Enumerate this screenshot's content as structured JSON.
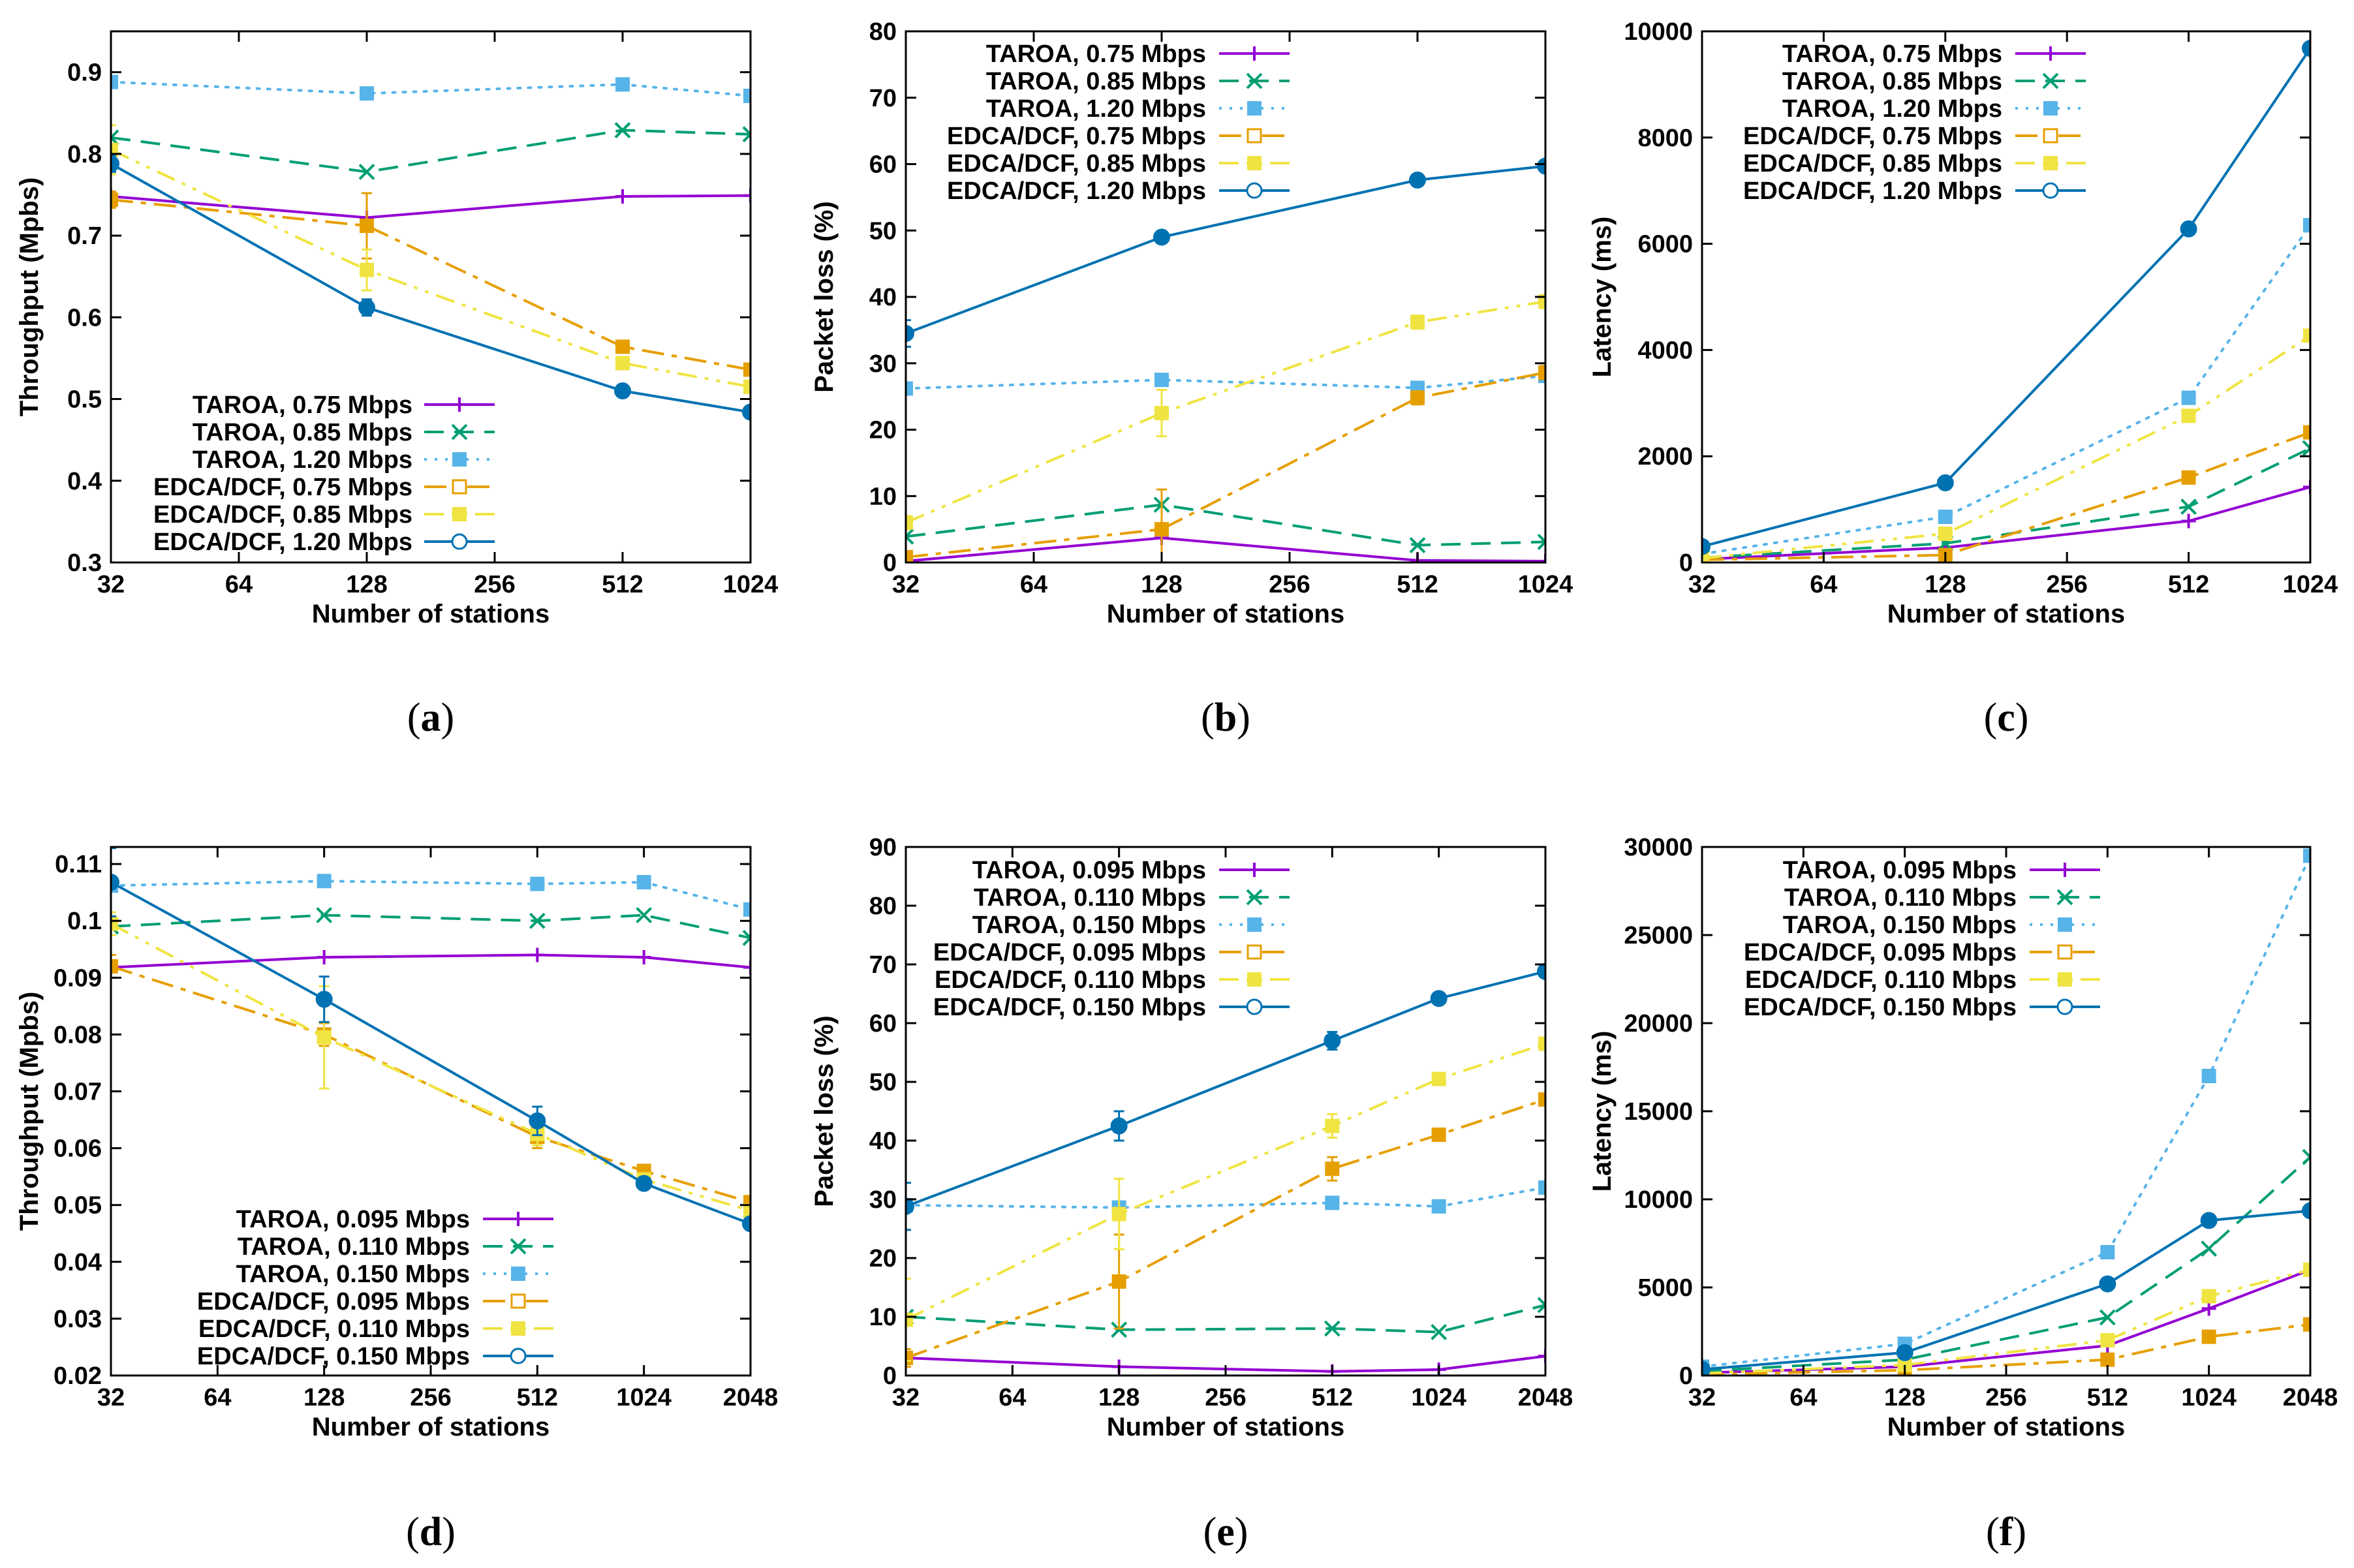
{
  "colors": {
    "purple": "#9400d3",
    "green": "#009e73",
    "skyblue": "#56b4e9",
    "orange": "#e69f00",
    "yellow": "#f0e442",
    "blue": "#0072b2"
  },
  "series_styles": [
    {
      "color": "purple",
      "dash": "",
      "marker": "plus"
    },
    {
      "color": "green",
      "dash": "30,16",
      "marker": "cross"
    },
    {
      "color": "skyblue",
      "dash": "4,12",
      "marker": "square-filled"
    },
    {
      "color": "orange",
      "dash": "34,12,8,12",
      "marker": "square-filled"
    },
    {
      "color": "yellow",
      "dash": "30,12,6,12,6,12",
      "marker": "square-filled"
    },
    {
      "color": "blue",
      "dash": "",
      "marker": "circle-filled"
    }
  ],
  "chart_data": [
    {
      "id": "a",
      "type": "line",
      "caption_letter": "a",
      "xlabel": "Number of stations",
      "ylabel": "Throughput (Mpbs)",
      "xscale": "log2",
      "xticks": [
        32,
        64,
        128,
        256,
        512,
        1024
      ],
      "xlim": [
        32,
        1024
      ],
      "ylim": [
        0.3,
        0.95
      ],
      "yticks": [
        0.3,
        0.4,
        0.5,
        0.6,
        0.7,
        0.8,
        0.9
      ],
      "ytick_labels": [
        "0.3",
        "0.4",
        "0.5",
        "0.6",
        "0.7",
        "0.8",
        "0.9"
      ],
      "legend_position": "bottom-right",
      "x": [
        32,
        128,
        512,
        1024
      ],
      "series": [
        {
          "name": "TAROA, 0.75 Mbps",
          "values": [
            0.748,
            0.722,
            0.748,
            0.749
          ]
        },
        {
          "name": "TAROA, 0.85 Mbps",
          "values": [
            0.82,
            0.778,
            0.829,
            0.824
          ]
        },
        {
          "name": "TAROA, 1.20 Mbps",
          "values": [
            0.888,
            0.874,
            0.885,
            0.871
          ]
        },
        {
          "name": "EDCA/DCF, 0.75 Mbps",
          "values": [
            0.744,
            0.712,
            0.564,
            0.536
          ],
          "errors": [
            0.01,
            0.04,
            0.005,
            0.005
          ]
        },
        {
          "name": "EDCA/DCF, 0.85 Mbps",
          "values": [
            0.805,
            0.658,
            0.544,
            0.515
          ],
          "errors": [
            0.03,
            0.025,
            0.005,
            0.005
          ]
        },
        {
          "name": "EDCA/DCF, 1.20 Mbps",
          "values": [
            0.788,
            0.612,
            0.51,
            0.484
          ],
          "errors": [
            0.01,
            0.01,
            0.003,
            0.003
          ]
        }
      ]
    },
    {
      "id": "b",
      "type": "line",
      "caption_letter": "b",
      "xlabel": "Number of stations",
      "ylabel": "Packet loss (%)",
      "xscale": "log2",
      "xticks": [
        32,
        64,
        128,
        256,
        512,
        1024
      ],
      "xlim": [
        32,
        1024
      ],
      "ylim": [
        0,
        80
      ],
      "yticks": [
        0,
        10,
        20,
        30,
        40,
        50,
        60,
        70,
        80
      ],
      "ytick_labels": [
        "0",
        "10",
        "20",
        "30",
        "40",
        "50",
        "60",
        "70",
        "80"
      ],
      "legend_position": "top-left",
      "x": [
        32,
        128,
        512,
        1024
      ],
      "series": [
        {
          "name": "TAROA, 0.75 Mbps",
          "values": [
            0.2,
            3.7,
            0.3,
            0.2
          ]
        },
        {
          "name": "TAROA, 0.85 Mbps",
          "values": [
            3.9,
            8.7,
            2.6,
            3.1
          ]
        },
        {
          "name": "TAROA, 1.20 Mbps",
          "values": [
            26.2,
            27.5,
            26.3,
            28.1
          ]
        },
        {
          "name": "EDCA/DCF, 0.75 Mbps",
          "values": [
            0.8,
            5.0,
            24.8,
            28.6
          ],
          "errors": [
            0.5,
            6.0,
            1.0,
            1.0
          ]
        },
        {
          "name": "EDCA/DCF, 0.85 Mbps",
          "values": [
            6.0,
            22.5,
            36.2,
            39.3
          ],
          "errors": [
            1.0,
            3.5,
            1.0,
            1.0
          ]
        },
        {
          "name": "EDCA/DCF, 1.20 Mbps",
          "values": [
            34.5,
            49.0,
            57.6,
            59.7
          ],
          "errors": [
            2.0,
            0.5,
            0.5,
            0.5
          ]
        }
      ]
    },
    {
      "id": "c",
      "type": "line",
      "caption_letter": "c",
      "xlabel": "Number of stations",
      "ylabel": "Latency (ms)",
      "xscale": "log2",
      "xticks": [
        32,
        64,
        128,
        256,
        512,
        1024
      ],
      "xlim": [
        32,
        1024
      ],
      "ylim": [
        0,
        10000
      ],
      "yticks": [
        0,
        2000,
        4000,
        6000,
        8000,
        10000
      ],
      "ytick_labels": [
        "0",
        "2000",
        "4000",
        "6000",
        "8000",
        "10000"
      ],
      "legend_position": "top-left",
      "x": [
        32,
        128,
        512,
        1024
      ],
      "series": [
        {
          "name": "TAROA, 0.75 Mbps",
          "values": [
            60,
            280,
            780,
            1420
          ]
        },
        {
          "name": "TAROA, 0.85 Mbps",
          "values": [
            90,
            360,
            1050,
            2150
          ]
        },
        {
          "name": "TAROA, 1.20 Mbps",
          "values": [
            160,
            860,
            3100,
            6350
          ]
        },
        {
          "name": "EDCA/DCF, 0.75 Mbps",
          "values": [
            50,
            140,
            1600,
            2450
          ]
        },
        {
          "name": "EDCA/DCF, 0.85 Mbps",
          "values": [
            80,
            540,
            2760,
            4270
          ]
        },
        {
          "name": "EDCA/DCF, 1.20 Mbps",
          "values": [
            300,
            1500,
            6280,
            9680
          ]
        }
      ]
    },
    {
      "id": "d",
      "type": "line",
      "caption_letter": "d",
      "xlabel": "Number of stations",
      "ylabel": "Throughput (Mpbs)",
      "xscale": "log2",
      "xticks": [
        32,
        64,
        128,
        256,
        512,
        1024,
        2048
      ],
      "xlim": [
        32,
        2048
      ],
      "ylim": [
        0.02,
        0.113
      ],
      "yticks": [
        0.02,
        0.03,
        0.04,
        0.05,
        0.06,
        0.07,
        0.08,
        0.09,
        0.1,
        0.11
      ],
      "ytick_labels": [
        "0.02",
        "0.03",
        "0.04",
        "0.05",
        "0.06",
        "0.07",
        "0.08",
        "0.09",
        "0.1",
        "0.11"
      ],
      "legend_position": "bottom-right",
      "x": [
        32,
        128,
        512,
        1024,
        2048
      ],
      "series": [
        {
          "name": "TAROA, 0.095 Mbps",
          "values": [
            0.0918,
            0.0936,
            0.094,
            0.0936,
            0.0918
          ]
        },
        {
          "name": "TAROA, 0.110 Mbps",
          "values": [
            0.099,
            0.101,
            0.1,
            0.101,
            0.097
          ]
        },
        {
          "name": "TAROA, 0.150 Mbps",
          "values": [
            0.1062,
            0.107,
            0.1065,
            0.1068,
            0.102
          ]
        },
        {
          "name": "EDCA/DCF, 0.095 Mbps",
          "values": [
            0.092,
            0.08,
            0.062,
            0.056,
            0.0505
          ],
          "errors": [
            0.002,
            0.002,
            0.002,
            0.001,
            0.001
          ]
        },
        {
          "name": "EDCA/DCF, 0.110 Mbps",
          "values": [
            0.0995,
            0.0795,
            0.0625,
            0.0545,
            0.049
          ],
          "errors": [
            0.002,
            0.009,
            0.002,
            0.001,
            0.001
          ]
        },
        {
          "name": "EDCA/DCF, 0.150 Mbps",
          "values": [
            0.1068,
            0.0862,
            0.0648,
            0.0538,
            0.0467
          ],
          "errors": [
            0.006,
            0.004,
            0.0025,
            0.001,
            0.001
          ]
        }
      ]
    },
    {
      "id": "e",
      "type": "line",
      "caption_letter": "e",
      "xlabel": "Number of stations",
      "ylabel": "Packet loss (%)",
      "xscale": "log2",
      "xticks": [
        32,
        64,
        128,
        256,
        512,
        1024,
        2048
      ],
      "xlim": [
        32,
        2048
      ],
      "ylim": [
        0,
        90
      ],
      "yticks": [
        0,
        10,
        20,
        30,
        40,
        50,
        60,
        70,
        80,
        90
      ],
      "ytick_labels": [
        "0",
        "10",
        "20",
        "30",
        "40",
        "50",
        "60",
        "70",
        "80",
        "90"
      ],
      "legend_position": "top-left",
      "x": [
        32,
        128,
        512,
        1024,
        2048
      ],
      "series": [
        {
          "name": "TAROA, 0.095 Mbps",
          "values": [
            3.0,
            1.5,
            0.7,
            1.0,
            3.3
          ]
        },
        {
          "name": "TAROA, 0.110 Mbps",
          "values": [
            10.0,
            7.8,
            8.0,
            7.4,
            12.0
          ]
        },
        {
          "name": "TAROA, 0.150 Mbps",
          "values": [
            29.0,
            28.6,
            29.4,
            28.8,
            32.0
          ]
        },
        {
          "name": "EDCA/DCF, 0.095 Mbps",
          "values": [
            3.0,
            16.0,
            35.2,
            41.0,
            47.0
          ],
          "errors": [
            1.5,
            8.0,
            2.0,
            1.0,
            1.0
          ]
        },
        {
          "name": "EDCA/DCF, 0.110 Mbps",
          "values": [
            9.5,
            27.5,
            42.5,
            50.5,
            56.5
          ],
          "errors": [
            7.0,
            6.0,
            2.0,
            1.0,
            1.0
          ]
        },
        {
          "name": "EDCA/DCF, 0.150 Mbps",
          "values": [
            28.8,
            42.5,
            57.0,
            64.2,
            68.8
          ],
          "errors": [
            4.0,
            2.5,
            1.5,
            0.5,
            1.0
          ]
        }
      ]
    },
    {
      "id": "f",
      "type": "line",
      "caption_letter": "f",
      "xlabel": "Number of stations",
      "ylabel": "Latency (ms)",
      "xscale": "log2",
      "xticks": [
        32,
        64,
        128,
        256,
        512,
        1024,
        2048
      ],
      "xlim": [
        32,
        2048
      ],
      "ylim": [
        0,
        30000
      ],
      "yticks": [
        0,
        5000,
        10000,
        15000,
        20000,
        25000,
        30000
      ],
      "ytick_labels": [
        "0",
        "5000",
        "10000",
        "15000",
        "20000",
        "25000",
        "30000"
      ],
      "legend_position": "top-left",
      "x": [
        32,
        128,
        512,
        1024,
        2048
      ],
      "series": [
        {
          "name": "TAROA, 0.095 Mbps",
          "values": [
            150,
            500,
            1700,
            3800,
            6000
          ]
        },
        {
          "name": "TAROA, 0.110 Mbps",
          "values": [
            250,
            900,
            3300,
            7200,
            12400
          ]
        },
        {
          "name": "TAROA, 0.150 Mbps",
          "values": [
            500,
            1800,
            7000,
            17000,
            29500
          ]
        },
        {
          "name": "EDCA/DCF, 0.095 Mbps",
          "values": [
            60,
            300,
            900,
            2200,
            2900
          ]
        },
        {
          "name": "EDCA/DCF, 0.110 Mbps",
          "values": [
            120,
            600,
            2000,
            4500,
            6000
          ]
        },
        {
          "name": "EDCA/DCF, 0.150 Mbps",
          "values": [
            350,
            1300,
            5200,
            8800,
            9350
          ]
        }
      ]
    }
  ]
}
